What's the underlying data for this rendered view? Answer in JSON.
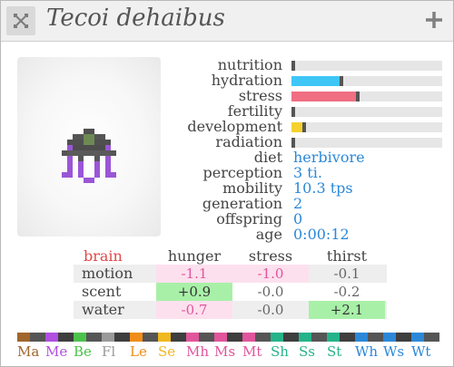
{
  "title": "Tecoi dehaibus",
  "stats": [
    {
      "label": "nutrition",
      "value": 0.0,
      "color": "#555555"
    },
    {
      "label": "hydration",
      "value": 0.32,
      "color": "#3ec6f7"
    },
    {
      "label": "stress",
      "value": 0.43,
      "color": "#f06f82"
    },
    {
      "label": "fertility",
      "value": 0.0,
      "color": "#555555"
    },
    {
      "label": "development",
      "value": 0.07,
      "color": "#f5d12e"
    },
    {
      "label": "radiation",
      "value": 0.0,
      "color": "#555555"
    }
  ],
  "info": [
    {
      "label": "diet",
      "value": "herbivore"
    },
    {
      "label": "perception",
      "value": "3 ti."
    },
    {
      "label": "mobility",
      "value": "10.3 tps"
    },
    {
      "label": "generation",
      "value": "2"
    },
    {
      "label": "offspring",
      "value": "0"
    },
    {
      "label": "age",
      "value": "0:00:12"
    }
  ],
  "brain": {
    "header": "brain",
    "header_color": "#e04848",
    "columns": [
      "hunger",
      "stress",
      "thirst"
    ],
    "rows": [
      {
        "label": "motion",
        "cells": [
          "-1.1",
          "-1.0",
          "-0.1"
        ]
      },
      {
        "label": "scent",
        "cells": [
          "+0.9",
          "-0.0",
          "-0.2"
        ]
      },
      {
        "label": "water",
        "cells": [
          "-0.7",
          "-0.0",
          "+2.1"
        ]
      }
    ]
  },
  "genes": [
    {
      "label": "Ma",
      "color": "#a0662b"
    },
    {
      "label": "Me",
      "color": "#b04fe0"
    },
    {
      "label": "Be",
      "color": "#4cc24c"
    },
    {
      "label": "Fl",
      "color": "#9a9a9a"
    },
    {
      "label": "Le",
      "color": "#f08c1a"
    },
    {
      "label": "Se",
      "color": "#f0b820"
    },
    {
      "label": "Mh",
      "color": "#e0559b"
    },
    {
      "label": "Ms",
      "color": "#e0559b"
    },
    {
      "label": "Mt",
      "color": "#e0559b"
    },
    {
      "label": "Sh",
      "color": "#25b38a"
    },
    {
      "label": "Ss",
      "color": "#25b38a"
    },
    {
      "label": "St",
      "color": "#25b38a"
    },
    {
      "label": "Wh",
      "color": "#2b88d8"
    },
    {
      "label": "Ws",
      "color": "#2b88d8"
    },
    {
      "label": "Wt",
      "color": "#2b88d8"
    }
  ],
  "cell_colors": {
    "negative_bg": "#fde0ee",
    "negative_text": "#e0559b",
    "positive_bg": "#a8f0a8",
    "positive_text": "#333333",
    "neutral_text": "#666666",
    "row_bg": "#eeeeee"
  },
  "icons": {
    "close": "close-x-icon",
    "expand": "plus-icon",
    "creature": "creature-sprite-icon"
  }
}
